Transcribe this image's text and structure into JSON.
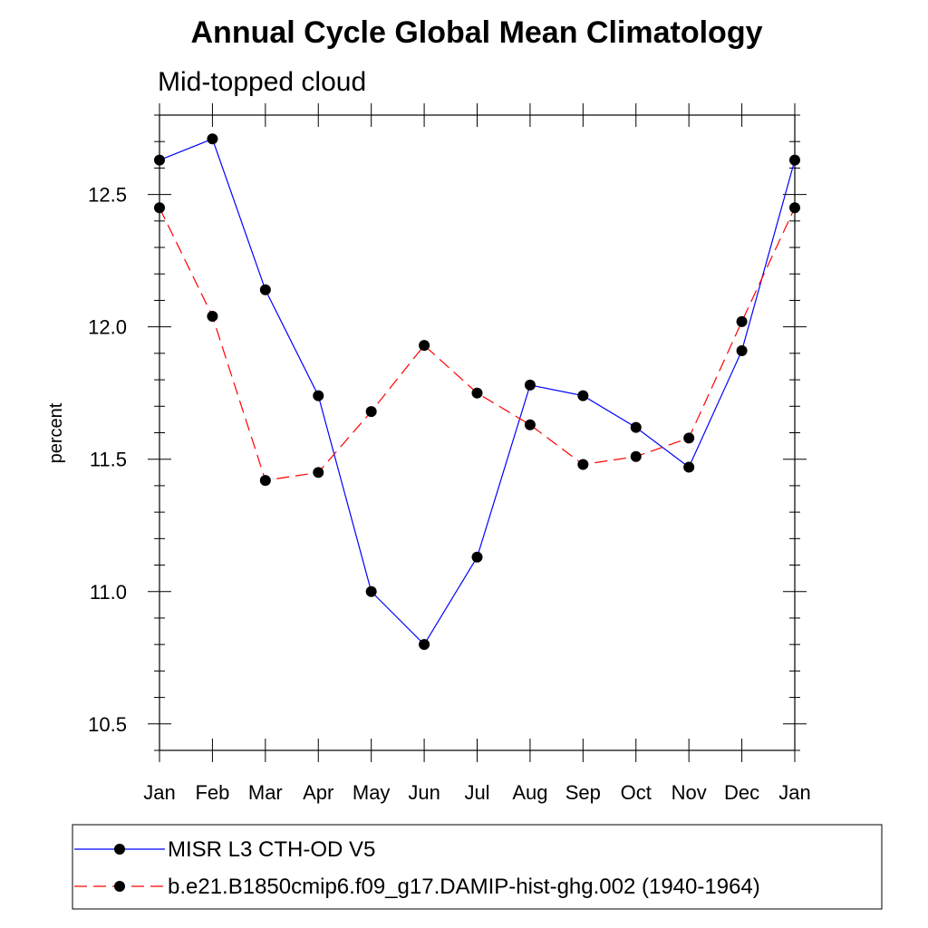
{
  "chart_data": {
    "type": "line",
    "title": "Annual Cycle Global Mean Climatology",
    "subtitle": "Mid-topped cloud",
    "xlabel": "",
    "ylabel": "percent",
    "categories": [
      "Jan",
      "Feb",
      "Mar",
      "Apr",
      "May",
      "Jun",
      "Jul",
      "Aug",
      "Sep",
      "Oct",
      "Nov",
      "Dec",
      "Jan"
    ],
    "ylim": [
      10.4,
      12.8
    ],
    "yticks": [
      10.5,
      11.0,
      11.5,
      12.0,
      12.5
    ],
    "ytick_labels": [
      "10.5",
      "11.0",
      "11.5",
      "12.0",
      "12.5"
    ],
    "grid": false,
    "legend_position": "bottom",
    "series": [
      {
        "name": "MISR L3 CTH-OD V5",
        "color": "#0000ff",
        "line_style": "solid",
        "marker": "filled-circle",
        "values": [
          12.63,
          12.71,
          12.14,
          11.74,
          11.0,
          10.8,
          11.13,
          11.78,
          11.74,
          11.62,
          11.47,
          11.91,
          12.63
        ]
      },
      {
        "name": "b.e21.B1850cmip6.f09_g17.DAMIP-hist-ghg.002 (1940-1964)",
        "color": "#ff0000",
        "line_style": "dashed",
        "marker": "filled-circle",
        "values": [
          12.45,
          12.04,
          11.42,
          11.45,
          11.68,
          11.93,
          11.75,
          11.63,
          11.48,
          11.51,
          11.58,
          12.02,
          12.45
        ]
      }
    ]
  }
}
